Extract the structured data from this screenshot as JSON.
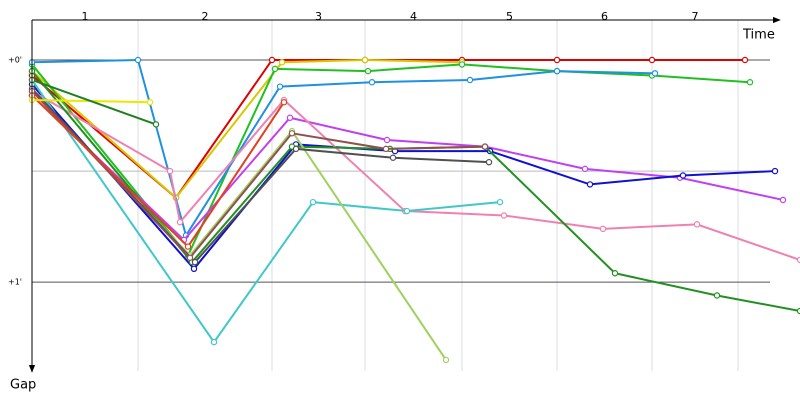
{
  "chart_data": {
    "type": "line",
    "x_label": "Time",
    "y_label": "Gap",
    "laps": [
      "1",
      "2",
      "3",
      "4",
      "5",
      "6",
      "7"
    ],
    "lap_ends": [
      106,
      240,
      333,
      430,
      525,
      620,
      706
    ],
    "xlim": [
      0,
      768
    ],
    "ylim": [
      -0.18,
      1.4
    ],
    "yticks": [
      {
        "value": 0,
        "label": "+0'"
      },
      {
        "value": 1,
        "label": "+1'"
      }
    ],
    "minor_yticks": [
      0.5
    ],
    "grid": true,
    "series": [
      {
        "color": "#e00000",
        "x": [
          0,
          144,
          240,
          333,
          430,
          525,
          620,
          713
        ],
        "values": [
          0.07,
          0.62,
          0,
          0,
          0,
          0,
          0,
          0
        ]
      },
      {
        "color": "#d8c800",
        "x": [
          0,
          144,
          250,
          333,
          430
        ],
        "values": [
          0.05,
          0.62,
          0.01,
          0,
          0.01
        ]
      },
      {
        "color": "#20c020",
        "x": [
          0,
          156,
          243,
          336,
          430,
          525,
          620,
          718
        ],
        "values": [
          0.02,
          0.88,
          0.04,
          0.05,
          0.02,
          0.05,
          0.07,
          0.1
        ]
      },
      {
        "color": "#2090e0",
        "x": [
          0,
          106,
          154,
          248,
          340,
          438,
          525,
          623
        ],
        "values": [
          0.01,
          0,
          0.79,
          0.12,
          0.1,
          0.09,
          0.05,
          0.06
        ]
      },
      {
        "color": "#c040f0",
        "x": [
          0,
          152,
          258,
          355,
          453,
          553,
          648,
          751
        ],
        "values": [
          0.16,
          0.81,
          0.26,
          0.36,
          0.39,
          0.49,
          0.53,
          0.63
        ]
      },
      {
        "color": "#1010d0",
        "x": [
          0,
          162,
          264,
          363,
          458,
          558,
          651,
          743
        ],
        "values": [
          0.11,
          0.94,
          0.38,
          0.41,
          0.41,
          0.56,
          0.52,
          0.5
        ]
      },
      {
        "color": "#f080b0",
        "x": [
          0,
          138,
          148,
          252,
          373,
          472,
          571,
          665,
          768
        ],
        "values": [
          0.14,
          0.5,
          0.73,
          0.18,
          0.68,
          0.7,
          0.76,
          0.74,
          0.9
        ]
      },
      {
        "color": "#209020",
        "x": [
          0,
          160,
          260,
          358,
          453,
          583,
          685,
          768
        ],
        "values": [
          0.05,
          0.91,
          0.39,
          0.4,
          0.39,
          0.96,
          1.06,
          1.13
        ]
      },
      {
        "color": "#40c8c8",
        "x": [
          0,
          182,
          281,
          375,
          468
        ],
        "values": [
          0.09,
          1.27,
          0.64,
          0.68,
          0.64
        ]
      },
      {
        "color": "#a0d060",
        "x": [
          0,
          158,
          260,
          414
        ],
        "values": [
          0.14,
          0.88,
          0.32,
          1.35
        ]
      },
      {
        "color": "#505050",
        "x": [
          0,
          163,
          264,
          361,
          457
        ],
        "values": [
          0.13,
          0.91,
          0.4,
          0.44,
          0.46
        ]
      },
      {
        "color": "#905050",
        "x": [
          0,
          158,
          260,
          354,
          453
        ],
        "values": [
          0.14,
          0.89,
          0.33,
          0.4,
          0.39
        ]
      },
      {
        "color": "#e04020",
        "x": [
          0,
          156,
          252
        ],
        "values": [
          0.16,
          0.84,
          0.19
        ]
      },
      {
        "color": "#e8e800",
        "x": [
          0,
          118
        ],
        "values": [
          0.18,
          0.19
        ]
      },
      {
        "color": "#208020",
        "x": [
          0,
          124
        ],
        "values": [
          0.09,
          0.29
        ]
      }
    ]
  }
}
